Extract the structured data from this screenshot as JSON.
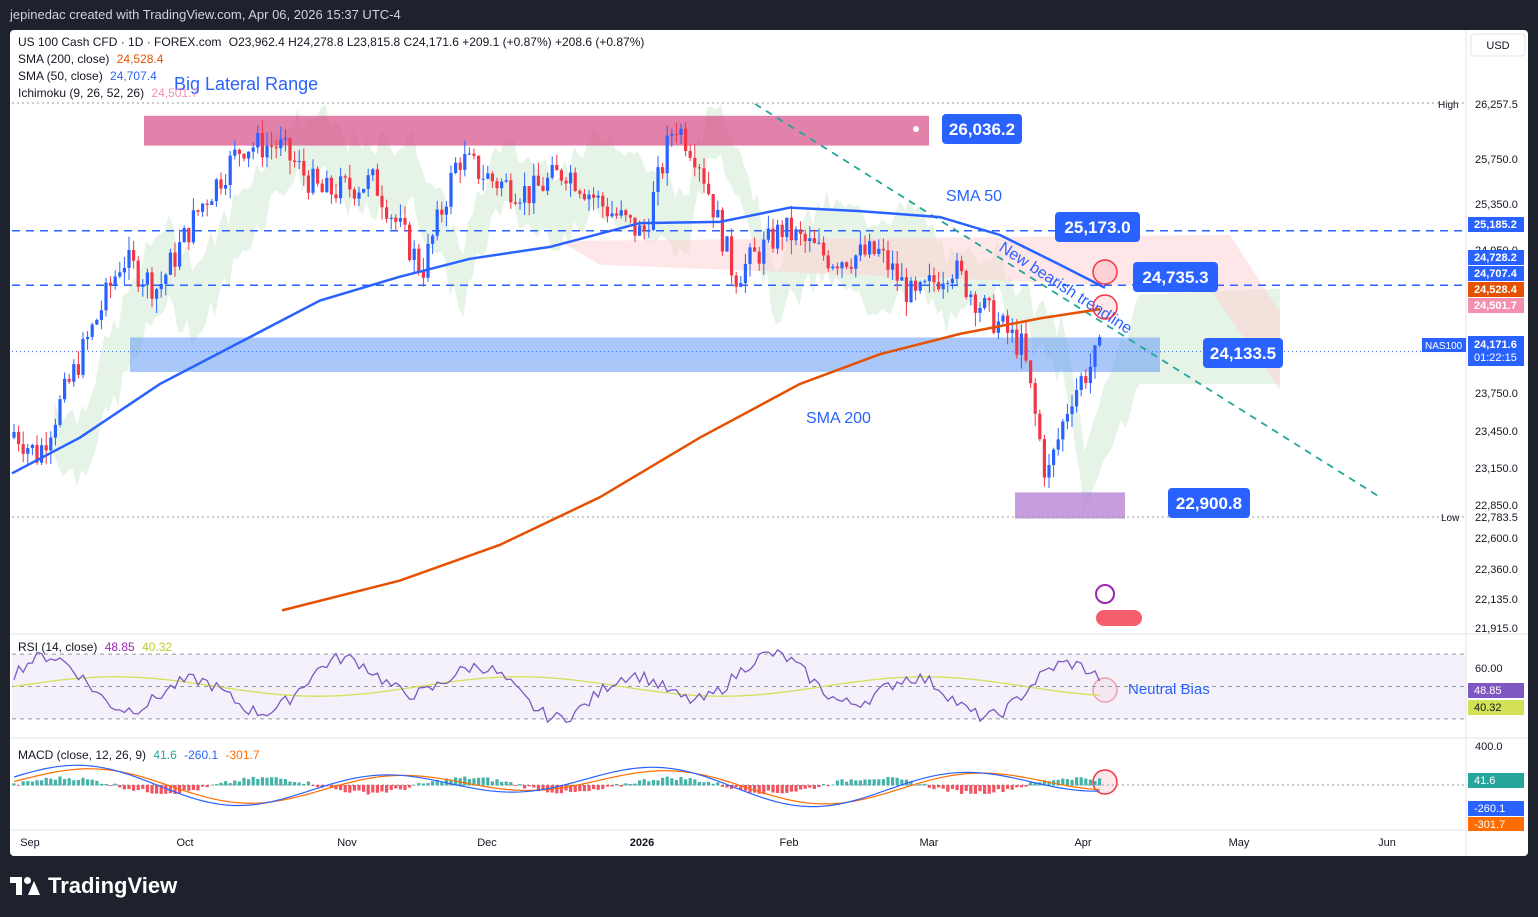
{
  "header": {
    "credit": "jepinedac created with TradingView.com, Apr 06, 2026 15:37 UTC-4"
  },
  "footer": {
    "brand": "TradingView"
  },
  "legend": {
    "symbol": "US 100 Cash CFD · 1D · FOREX.com",
    "ohlc": "O23,962.4  H24,278.8  L23,815.8  C24,171.6  +209.1 (+0.87%)  +208.6 (+0.87%)",
    "sma200_label": "SMA (200, close)",
    "sma200_value": "24,528.4",
    "sma50_label": "SMA (50, close)",
    "sma50_value": "24,707.4",
    "ichimoku_label": "Ichimoku (9, 26, 52, 26)",
    "ichimoku_value": "24,501.7",
    "rsi_label": "RSI (14, close)",
    "rsi_value": "48.85",
    "rsi_ma_value": "40.32",
    "macd_label": "MACD (close, 12, 26, 9)",
    "macd_value": "41.6",
    "macd_signal": "-260.1",
    "macd_line": "-301.7"
  },
  "currency": "USD",
  "colors": {
    "bull": "#2962ff",
    "bear": "#f23645",
    "sma50": "#2962ff",
    "sma200": "#e65100",
    "trend": "#26a69a",
    "range_zone": "#d8578c",
    "support_zone": "#6fa1f5",
    "low_zone": "#b47dd1",
    "cloud_green": "#c8e6c9",
    "cloud_red": "#ffcdd2",
    "rsi_band": "#ede7f6"
  },
  "annotations": {
    "range_title": "Big Lateral Range",
    "sma50_label": "SMA 50",
    "sma200_label": "SMA 200",
    "trend_label": "New bearish trendline",
    "neutral_label": "Neutral Bias",
    "callouts": [
      "26,036.2",
      "25,173.0",
      "24,735.3",
      "24,133.5",
      "22,900.8"
    ]
  },
  "price_axis": {
    "ticks": [
      "25,750.0",
      "25,350.0",
      "24,950.0",
      "23,750.0",
      "23,450.0",
      "23,150.0",
      "22,850.0",
      "22,600.0",
      "22,360.0",
      "22,135.0",
      "21,915.0"
    ],
    "high_label": "High",
    "high_value": "26,257.5",
    "low_label": "Low",
    "low_value": "22,783.5",
    "badges": [
      "25,185.2",
      "24,728.2",
      "24,707.4",
      "24,528.4",
      "24,501.7"
    ],
    "last_symbol": "NAS100",
    "last_price": "24,171.6",
    "countdown": "01:22:15"
  },
  "rsi_axis": {
    "ticks": [
      "60.00",
      "400.0"
    ],
    "value": "48.85",
    "ma": "40.32"
  },
  "macd_axis": {
    "hist": "41.6",
    "signal": "-260.1",
    "macd": "-301.7"
  },
  "time_axis": {
    "labels": [
      "Sep",
      "Oct",
      "Nov",
      "Dec",
      "2026",
      "Feb",
      "Mar",
      "Apr",
      "May",
      "Jun"
    ]
  },
  "chart_data": {
    "type": "candlestick",
    "title": "US 100 Cash CFD · 1D · FOREX.com",
    "ylim": [
      21915,
      26330
    ],
    "key_levels": [
      26036.2,
      25173.0,
      24735.3,
      24133.5,
      22900.8
    ],
    "high": 26257.5,
    "low": 22783.5,
    "last": 24171.6,
    "sma200_last": 24528.4,
    "sma50_last": 24707.4,
    "rsi_last": 48.85,
    "macd_hist_last": 41.6
  }
}
